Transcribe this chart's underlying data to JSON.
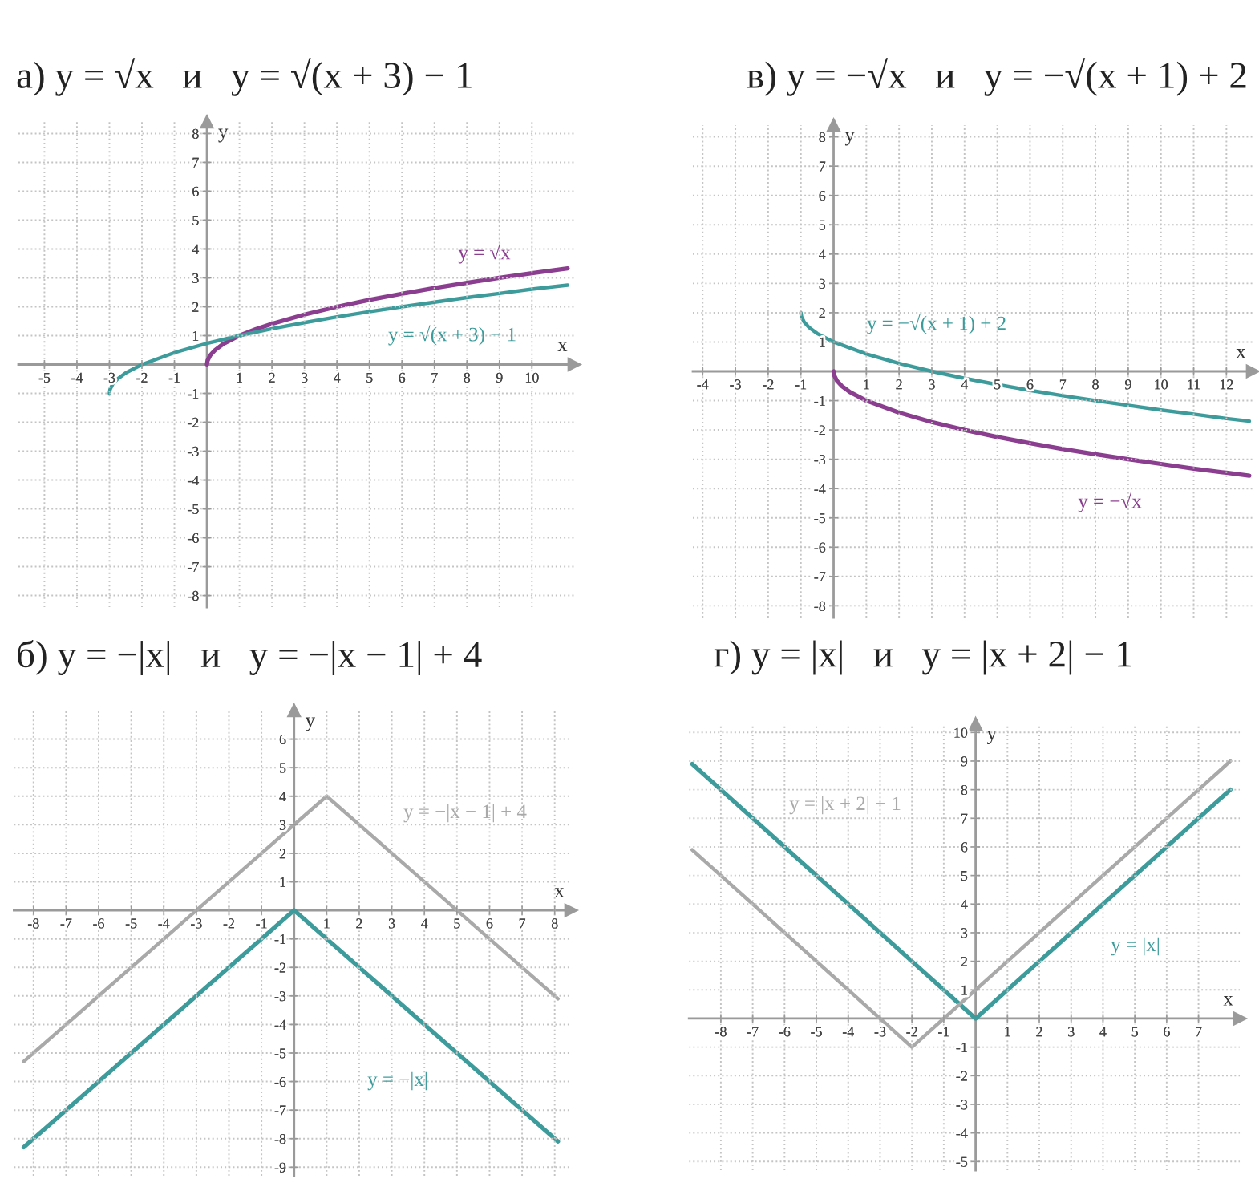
{
  "chart_data": [
    {
      "type": "line",
      "title": "а) y = √x   и   y = √(x + 3) − 1",
      "xlabel": "x",
      "ylabel": "y",
      "xlim": [
        -5.8,
        11.3
      ],
      "ylim": [
        -8.4,
        8.4
      ],
      "xticks": [
        -5,
        -4,
        -3,
        -2,
        -1,
        1,
        2,
        3,
        4,
        5,
        6,
        7,
        8,
        9,
        10
      ],
      "yticks": [
        -8,
        -7,
        -6,
        -5,
        -4,
        -3,
        -2,
        -1,
        1,
        2,
        3,
        4,
        5,
        6,
        7,
        8
      ],
      "grid": true,
      "series": [
        {
          "name": "y = √x",
          "color": "#8b3d8f",
          "x": [
            0,
            0.02,
            0.1,
            0.25,
            0.5,
            1,
            1.5,
            2,
            3,
            4,
            5,
            6,
            7,
            8,
            9,
            10,
            11.1
          ],
          "values": [
            0,
            0.14,
            0.32,
            0.5,
            0.71,
            1,
            1.22,
            1.41,
            1.73,
            2,
            2.24,
            2.45,
            2.65,
            2.83,
            3,
            3.16,
            3.33
          ]
        },
        {
          "name": "y = √(x + 3) − 1",
          "color": "#3d9b9b",
          "x": [
            -3,
            -2.98,
            -2.9,
            -2.75,
            -2.5,
            -2,
            -1,
            0,
            1,
            2,
            3,
            4,
            5,
            6,
            7,
            8,
            9,
            10,
            11.1
          ],
          "values": [
            -1,
            -0.86,
            -0.68,
            -0.5,
            -0.29,
            0,
            0.41,
            0.73,
            1,
            1.24,
            1.45,
            1.65,
            1.83,
            2,
            2.16,
            2.32,
            2.46,
            2.61,
            2.75
          ]
        }
      ]
    },
    {
      "type": "line",
      "title": "в) y = −√x   и   y = −√(x + 1) + 2",
      "xlabel": "x",
      "ylabel": "y",
      "xlim": [
        -4.3,
        12.8
      ],
      "ylim": [
        -8.4,
        8.4
      ],
      "xticks": [
        -4,
        -3,
        -2,
        -1,
        1,
        2,
        3,
        4,
        5,
        6,
        7,
        8,
        9,
        10,
        11,
        12
      ],
      "yticks": [
        -8,
        -7,
        -6,
        -5,
        -4,
        -3,
        -2,
        -1,
        1,
        2,
        3,
        4,
        5,
        6,
        7,
        8
      ],
      "grid": true,
      "series": [
        {
          "name": "y = −√x",
          "color": "#8b3d8f",
          "x": [
            0,
            0.02,
            0.1,
            0.25,
            0.5,
            1,
            2,
            3,
            4,
            5,
            6,
            7,
            8,
            9,
            10,
            11,
            12,
            12.7
          ],
          "values": [
            0,
            -0.14,
            -0.32,
            -0.5,
            -0.71,
            -1,
            -1.41,
            -1.73,
            -2,
            -2.24,
            -2.45,
            -2.65,
            -2.83,
            -3,
            -3.16,
            -3.32,
            -3.46,
            -3.56
          ]
        },
        {
          "name": "y = −√(x + 1) + 2",
          "color": "#3d9b9b",
          "x": [
            -1,
            -0.98,
            -0.9,
            -0.75,
            -0.5,
            0,
            1,
            2,
            3,
            4,
            5,
            6,
            7,
            8,
            9,
            10,
            11,
            12,
            12.7
          ],
          "values": [
            2,
            1.86,
            1.68,
            1.5,
            1.29,
            1,
            0.59,
            0.27,
            0,
            -0.24,
            -0.45,
            -0.65,
            -0.83,
            -1,
            -1.16,
            -1.32,
            -1.46,
            -1.61,
            -1.7
          ]
        }
      ]
    },
    {
      "type": "line",
      "title": "б) y = −|x|   и   y = −|x − 1| + 4",
      "xlabel": "x",
      "ylabel": "y",
      "xlim": [
        -8.6,
        8.5
      ],
      "ylim": [
        -9.3,
        7
      ],
      "xticks": [
        -8,
        -7,
        -6,
        -5,
        -4,
        -3,
        -2,
        -1,
        1,
        2,
        3,
        4,
        5,
        6,
        7,
        8
      ],
      "yticks": [
        -9,
        -8,
        -7,
        -6,
        -5,
        -4,
        -3,
        -2,
        -1,
        1,
        2,
        3,
        4,
        5,
        6
      ],
      "grid": true,
      "series": [
        {
          "name": "y = −|x|",
          "color": "#3d9b9b",
          "x": [
            -8.3,
            0,
            8.1
          ],
          "values": [
            -8.3,
            0,
            -8.1
          ]
        },
        {
          "name": "y = −|x − 1| + 4",
          "color": "#a9a9a9",
          "x": [
            -8.3,
            1,
            8.1
          ],
          "values": [
            -5.3,
            4,
            -3.1
          ]
        }
      ]
    },
    {
      "type": "line",
      "title": "г) y = |x|   и   y = |x + 2| − 1",
      "xlabel": "x",
      "ylabel": "y",
      "xlim": [
        -9,
        8.3
      ],
      "ylim": [
        -5.3,
        10.3
      ],
      "xticks": [
        -8,
        -7,
        -6,
        -5,
        -4,
        -3,
        -2,
        -1,
        1,
        2,
        3,
        4,
        5,
        6,
        7
      ],
      "yticks": [
        -5,
        -4,
        -3,
        -2,
        -1,
        1,
        2,
        3,
        4,
        5,
        6,
        7,
        8,
        9,
        10
      ],
      "grid": true,
      "series": [
        {
          "name": "y = |x|",
          "color": "#3d9b9b",
          "x": [
            -8.9,
            0,
            8
          ],
          "values": [
            8.9,
            0,
            8
          ]
        },
        {
          "name": "y = |x + 2| − 1",
          "color": "#a9a9a9",
          "x": [
            -8.9,
            -2,
            8
          ],
          "values": [
            5.9,
            -1,
            9
          ]
        }
      ]
    }
  ]
}
